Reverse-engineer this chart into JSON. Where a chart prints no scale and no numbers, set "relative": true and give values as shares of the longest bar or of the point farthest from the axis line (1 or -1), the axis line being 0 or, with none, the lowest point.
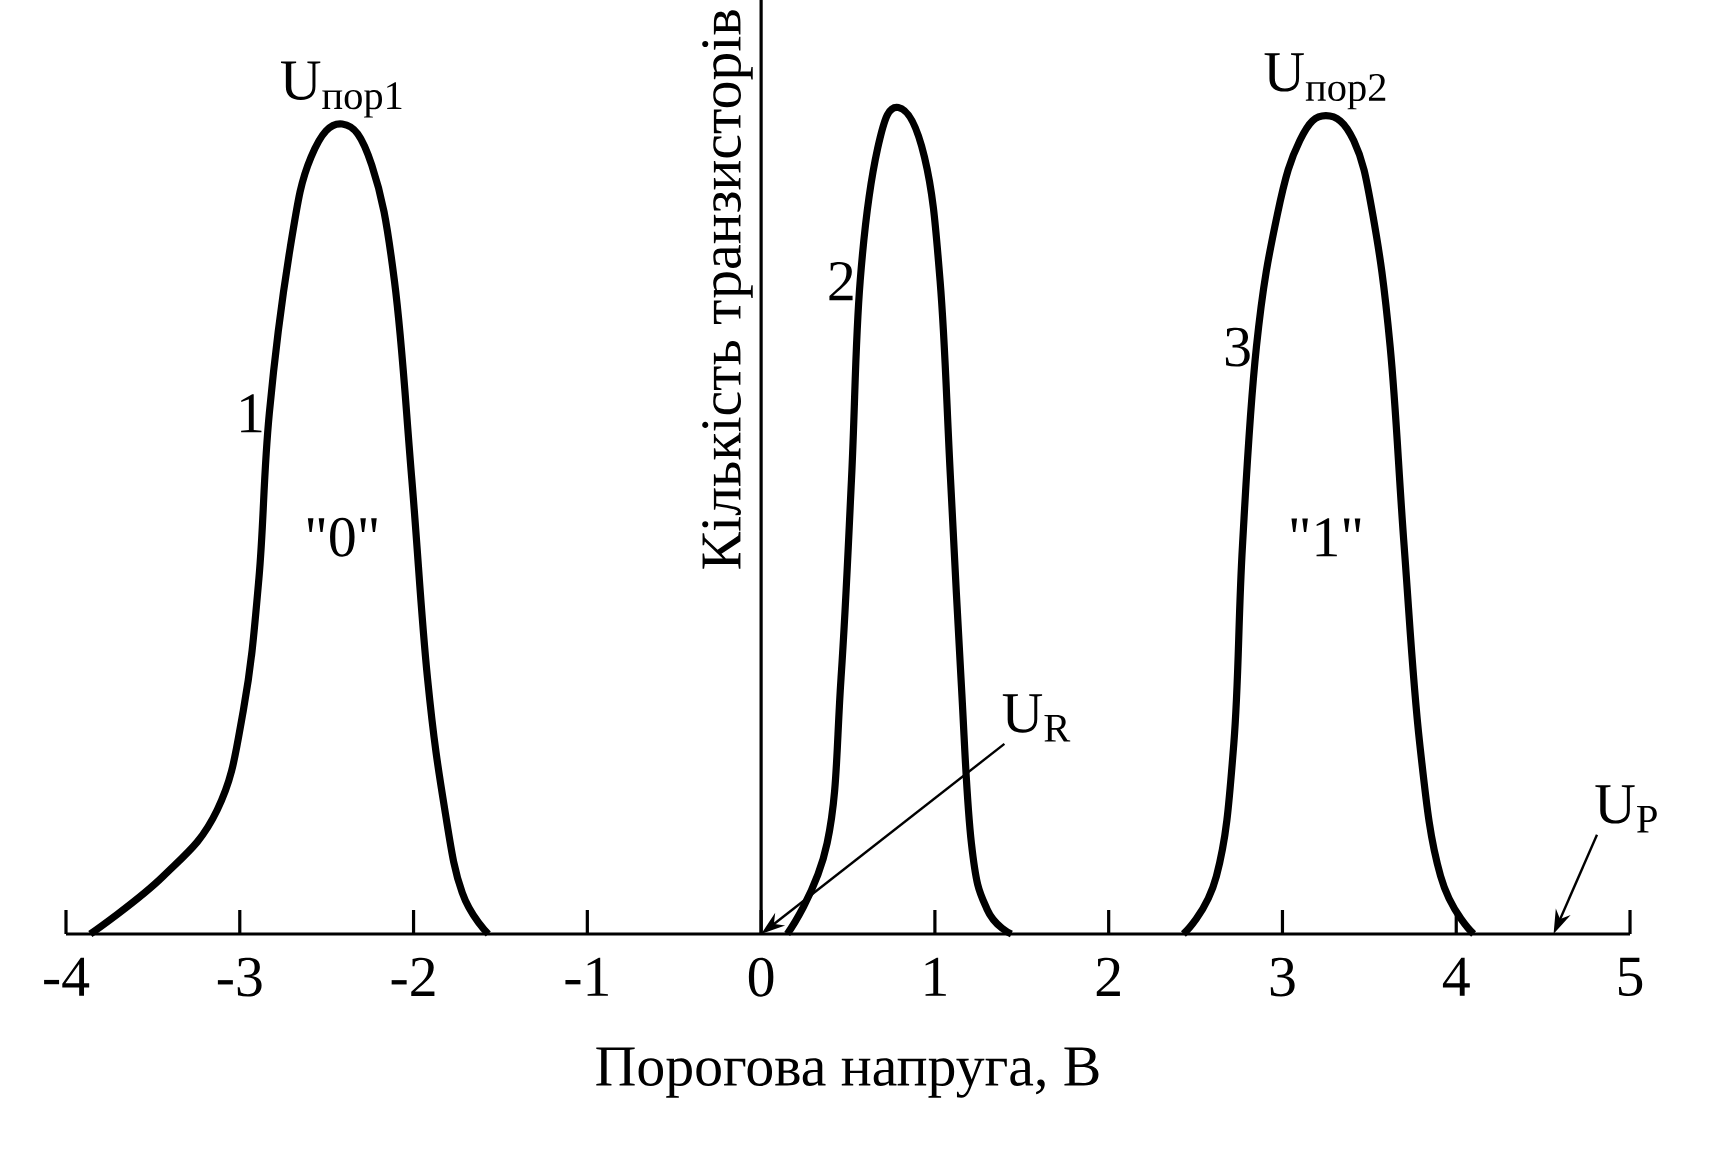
{
  "chart_data": {
    "type": "line",
    "relative": true,
    "xlabel": "Порогова напруга, В",
    "ylabel": "Кількість транзисторів",
    "xlim": [
      -4,
      5
    ],
    "xticks": [
      -4,
      -3,
      -2,
      -1,
      0,
      1,
      2,
      3,
      4,
      5
    ],
    "series": [
      {
        "name": "1",
        "color": "#000000",
        "x": [
          -3.86,
          -3.44,
          -3.13,
          -2.98,
          -2.89,
          -2.83,
          -2.71,
          -2.59,
          -2.41,
          -2.24,
          -2.11,
          -2.01,
          -1.92,
          -1.82,
          -1.72,
          -1.57
        ],
        "values": [
          0,
          0.07,
          0.15,
          0.27,
          0.43,
          0.63,
          0.83,
          0.94,
          0.98,
          0.93,
          0.79,
          0.55,
          0.31,
          0.15,
          0.05,
          0
        ]
      },
      {
        "name": "2",
        "color": "#000000",
        "x": [
          0.15,
          0.38,
          0.46,
          0.52,
          0.57,
          0.67,
          0.79,
          0.94,
          1.03,
          1.09,
          1.15,
          1.21,
          1.3,
          1.44
        ],
        "values": [
          0,
          0.11,
          0.31,
          0.55,
          0.79,
          0.95,
          1,
          0.94,
          0.79,
          0.55,
          0.31,
          0.11,
          0.03,
          0
        ]
      },
      {
        "name": "3",
        "color": "#000000",
        "x": [
          2.43,
          2.62,
          2.72,
          2.77,
          2.85,
          2.97,
          3.1,
          3.25,
          3.41,
          3.52,
          3.62,
          3.7,
          3.79,
          3.91,
          4.1
        ],
        "values": [
          0,
          0.07,
          0.23,
          0.47,
          0.71,
          0.87,
          0.96,
          0.99,
          0.96,
          0.87,
          0.71,
          0.47,
          0.23,
          0.07,
          0
        ]
      }
    ],
    "annotations": [
      {
        "text": "U$_{пор1}$",
        "x": -2.41,
        "y": 0.98
      },
      "\"0\"",
      "U$_{R}$",
      {
        "text": "U$_{пор2}$",
        "x": 3.25,
        "y": 0.99
      },
      "\"1\"",
      "U$_{P}$"
    ]
  }
}
